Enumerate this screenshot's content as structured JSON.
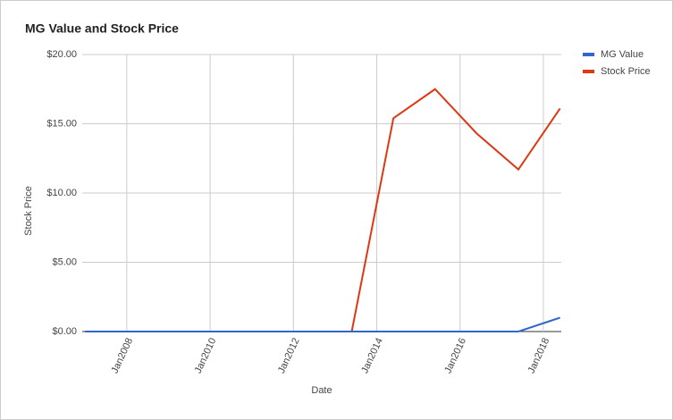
{
  "chart_data": {
    "type": "line",
    "title": "MG Value and Stock Price",
    "x_label": "Date",
    "y_label": "Stock Price",
    "x": [
      2007,
      2008.4,
      2009.4,
      2010.4,
      2011.4,
      2012.4,
      2013.4,
      2014.4,
      2015.4,
      2016.4,
      2017.4,
      2018.4
    ],
    "series": [
      {
        "name": "MG Value",
        "color": "#3366cc",
        "values": [
          0,
          0,
          0,
          0,
          0,
          0,
          0,
          0,
          0,
          0,
          0,
          1.0
        ]
      },
      {
        "name": "Stock Price",
        "color": "#dc3912",
        "values": [
          0,
          0,
          0,
          0,
          0,
          0,
          0,
          15.4,
          17.5,
          14.3,
          11.7,
          16.1
        ]
      }
    ],
    "xlim": [
      2006.93,
      2018.43
    ],
    "xticks": [
      {
        "value": 2008,
        "label": "Jan2008"
      },
      {
        "value": 2010,
        "label": "Jan2010"
      },
      {
        "value": 2012,
        "label": "Jan2012"
      },
      {
        "value": 2014,
        "label": "Jan2014"
      },
      {
        "value": 2016,
        "label": "Jan2016"
      },
      {
        "value": 2018,
        "label": "Jan2018"
      }
    ],
    "ylim": [
      0,
      20
    ],
    "yticks": [
      {
        "value": 0,
        "label": "$0.00"
      },
      {
        "value": 5,
        "label": "$5.00"
      },
      {
        "value": 10,
        "label": "$10.00"
      },
      {
        "value": 15,
        "label": "$15.00"
      },
      {
        "value": 20,
        "label": "$20.00"
      }
    ],
    "grid": true,
    "legend": "right"
  }
}
